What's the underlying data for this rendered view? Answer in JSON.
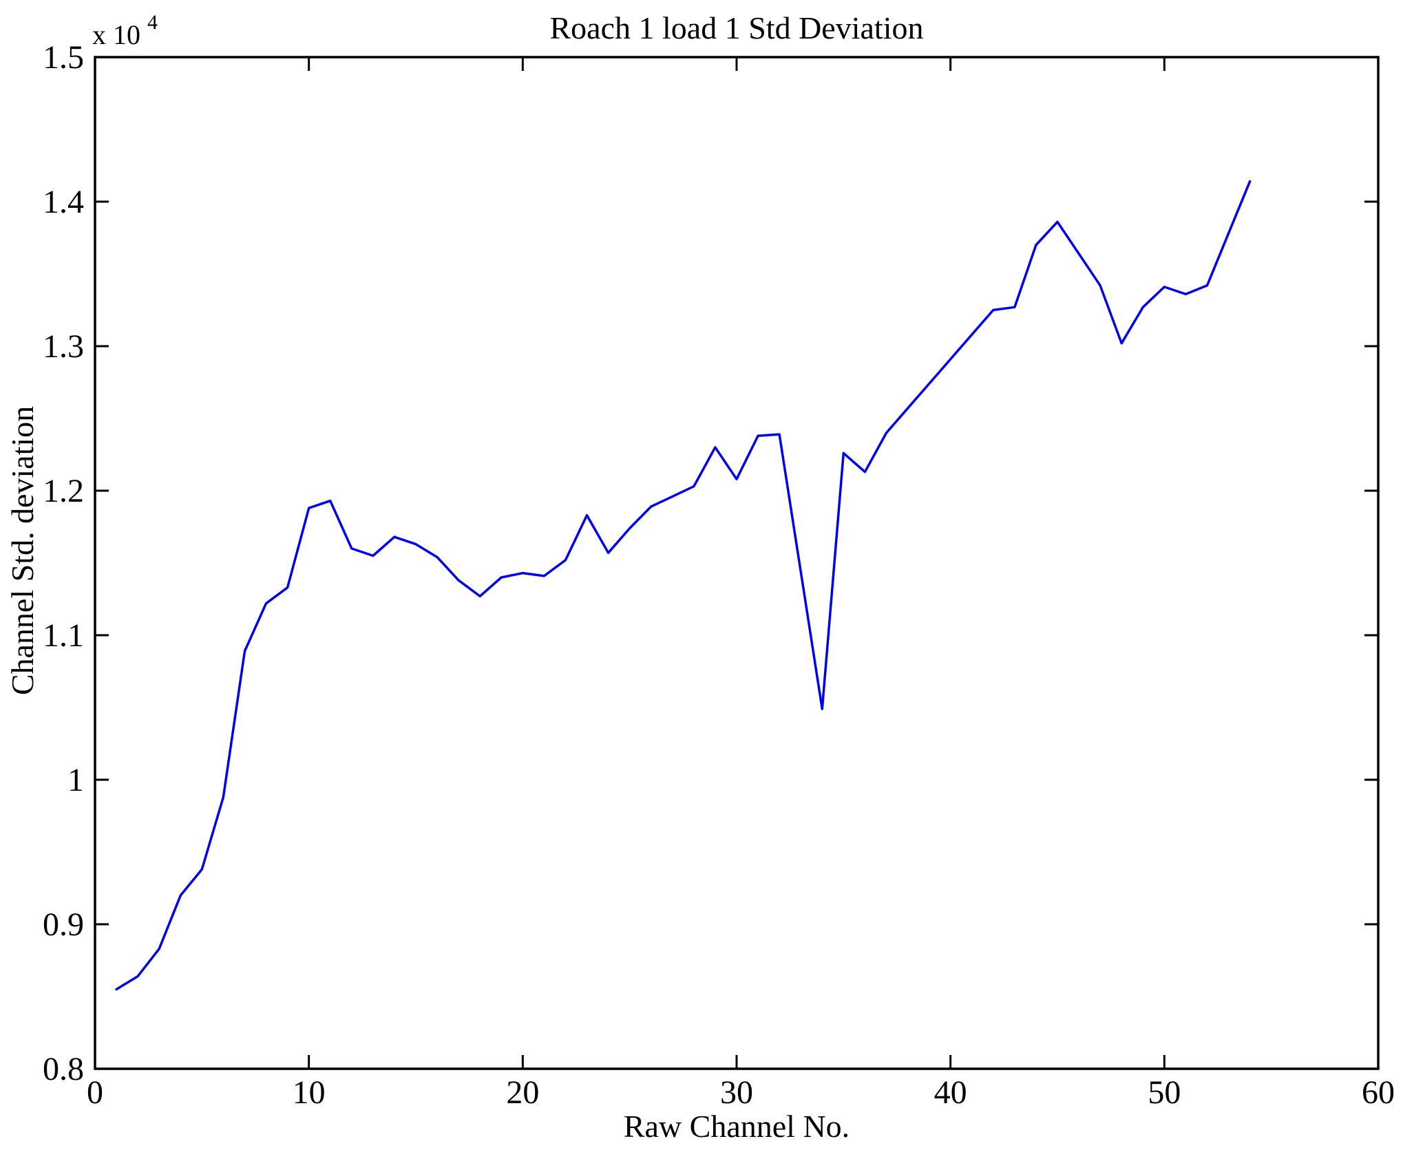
{
  "figure": {
    "background_color": "#ffffff",
    "axis_color": "#000000"
  },
  "chart_data": {
    "type": "line",
    "title": "Roach 1 load 1 Std Deviation",
    "xlabel": "Raw Channel No.",
    "ylabel": "Channel Std. deviation",
    "y_axis_multiplier": {
      "base": "x 10",
      "exponent": "4"
    },
    "xlim": [
      0,
      60
    ],
    "ylim": [
      0.8,
      1.5
    ],
    "x_ticks": [
      0,
      10,
      20,
      30,
      40,
      50,
      60
    ],
    "x_tick_labels": [
      "0",
      "10",
      "20",
      "30",
      "40",
      "50",
      "60"
    ],
    "y_ticks": [
      0.8,
      0.9,
      1.0,
      1.1,
      1.2,
      1.3,
      1.4,
      1.5
    ],
    "y_tick_labels": [
      "0.8",
      "0.9",
      "1",
      "1.1",
      "1.2",
      "1.3",
      "1.4",
      "1.5"
    ],
    "grid": false,
    "legend_position": "none",
    "line_color": "#0000F0",
    "units_note": "y values in units of 10^4",
    "series": [
      {
        "name": "Channel Std. deviation",
        "x": [
          1,
          2,
          3,
          4,
          5,
          6,
          7,
          8,
          9,
          10,
          11,
          12,
          13,
          14,
          15,
          16,
          17,
          18,
          19,
          20,
          21,
          22,
          23,
          24,
          25,
          26,
          27,
          28,
          29,
          30,
          31,
          32,
          33,
          34,
          35,
          36,
          37,
          38,
          39,
          40,
          41,
          42,
          43,
          44,
          45,
          46,
          47,
          48,
          49,
          50,
          51,
          52,
          53,
          54
        ],
        "y": [
          0.855,
          0.864,
          0.883,
          0.92,
          0.938,
          0.988,
          1.089,
          1.122,
          1.133,
          1.188,
          1.193,
          1.16,
          1.155,
          1.168,
          1.163,
          1.154,
          1.138,
          1.127,
          1.14,
          1.143,
          1.141,
          1.152,
          1.183,
          1.157,
          1.174,
          1.189,
          1.196,
          1.203,
          1.23,
          1.208,
          1.238,
          1.239,
          1.144,
          1.049,
          1.226,
          1.213,
          1.24,
          1.257,
          1.274,
          1.291,
          1.308,
          1.325,
          1.327,
          1.37,
          1.386,
          1.364,
          1.342,
          1.302,
          1.327,
          1.341,
          1.336,
          1.342,
          1.378,
          1.414
        ]
      }
    ]
  }
}
